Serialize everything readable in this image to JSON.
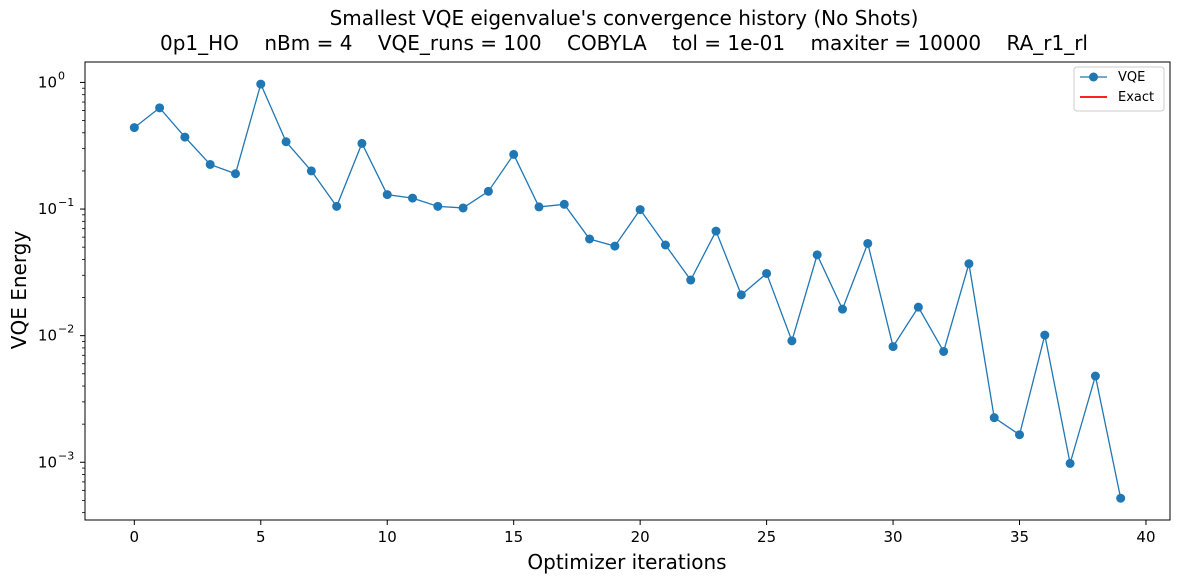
{
  "chart_data": {
    "type": "line",
    "title": "Smallest VQE eigenvalue's convergence history (No Shots)",
    "subtitle": "0p1_HO    nBm = 4    VQE_runs = 100    COBYLA    tol = 1e-01    maxiter = 10000    RA_r1_rl",
    "xlabel": "Optimizer iterations",
    "ylabel": "VQE Energy",
    "yscale": "log",
    "xlim": [
      -1.95,
      40.95
    ],
    "ylim": [
      0.00035,
      1.45
    ],
    "xticks": [
      0,
      5,
      10,
      15,
      20,
      25,
      30,
      35,
      40
    ],
    "yticks": [
      {
        "value": 0.001,
        "base": "10",
        "exp": "−3"
      },
      {
        "value": 0.01,
        "base": "10",
        "exp": "−2"
      },
      {
        "value": 0.1,
        "base": "10",
        "exp": "−1"
      },
      {
        "value": 1,
        "base": "10",
        "exp": "0"
      }
    ],
    "legend_position": "top-right",
    "grid": false,
    "series": [
      {
        "name": "VQE",
        "color": "#1f77b4",
        "marker": "circle",
        "x": [
          0,
          1,
          2,
          3,
          4,
          5,
          6,
          7,
          8,
          9,
          10,
          11,
          12,
          13,
          14,
          15,
          16,
          17,
          18,
          19,
          20,
          21,
          22,
          23,
          24,
          25,
          26,
          27,
          28,
          29,
          30,
          31,
          32,
          33,
          34,
          35,
          36,
          37,
          38,
          39
        ],
        "values": [
          0.44,
          0.63,
          0.37,
          0.225,
          0.19,
          0.97,
          0.34,
          0.2,
          0.105,
          0.33,
          0.13,
          0.122,
          0.105,
          0.102,
          0.138,
          0.27,
          0.104,
          0.109,
          0.058,
          0.051,
          0.099,
          0.052,
          0.0275,
          0.067,
          0.021,
          0.031,
          0.0091,
          0.0435,
          0.0162,
          0.0535,
          0.0082,
          0.0168,
          0.0075,
          0.037,
          0.00225,
          0.00165,
          0.0101,
          0.00098,
          0.0048,
          0.00052
        ]
      },
      {
        "name": "Exact",
        "color": "#ff0000",
        "values": []
      }
    ]
  }
}
